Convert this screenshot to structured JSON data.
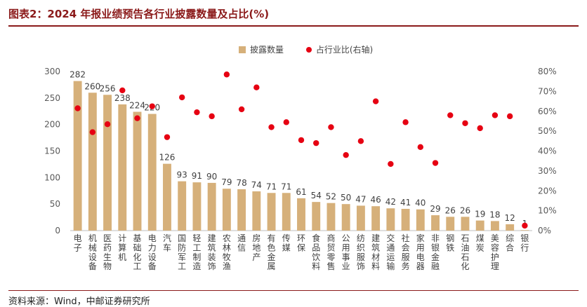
{
  "figure_title": "图表2：2024 年报业绩预告各行业披露数量及占比(%)",
  "source_note": "资料来源：Wind，中邮证券研究所",
  "chart_data": {
    "type": "bar",
    "categories": [
      "电子",
      "机械设备",
      "医药生物",
      "计算机",
      "基础化工",
      "电力设备",
      "汽车",
      "国防军工",
      "轻工制造",
      "建筑装饰",
      "农林牧渔",
      "通信",
      "房地产",
      "有色金属",
      "传媒",
      "环保",
      "食品饮料",
      "商贸零售",
      "公用事业",
      "纺织服饰",
      "建筑材料",
      "交通运输",
      "社会服务",
      "家用电器",
      "非银金融",
      "钢铁",
      "石油石化",
      "煤炭",
      "美容护理",
      "综合",
      "银行"
    ],
    "series": [
      {
        "name": "披露数量",
        "axis": "left",
        "kind": "bar",
        "values": [
          282,
          260,
          256,
          238,
          224,
          220,
          126,
          93,
          91,
          90,
          79,
          78,
          74,
          71,
          71,
          61,
          54,
          52,
          50,
          47,
          46,
          42,
          41,
          40,
          29,
          26,
          26,
          19,
          18,
          12,
          1
        ]
      },
      {
        "name": "占行业比(右轴)",
        "axis": "right",
        "kind": "scatter",
        "values": [
          61.5,
          49.5,
          53.5,
          70.5,
          56.5,
          62.5,
          47,
          67,
          59.5,
          57.5,
          78.5,
          61,
          72,
          52,
          54.5,
          45.5,
          44,
          52,
          38,
          45,
          65,
          33.5,
          54.5,
          42,
          34,
          58,
          54,
          51.5,
          58,
          57.5,
          2.5
        ]
      }
    ],
    "left_axis": {
      "min": 0,
      "max": 300,
      "ticks": [
        "0",
        "50",
        "100",
        "150",
        "200",
        "250",
        "300"
      ]
    },
    "right_axis": {
      "min": 0,
      "max": 80,
      "ticks": [
        "0%",
        "10%",
        "20%",
        "30%",
        "40%",
        "50%",
        "60%",
        "70%",
        "80%"
      ]
    },
    "legend": {
      "position": "top",
      "items": [
        "披露数量",
        "占行业比(右轴)"
      ]
    },
    "grid": false,
    "colors": {
      "bar": "#d6b07a",
      "dot": "#e60012",
      "axis": "#bfbfbf",
      "text": "#595959"
    }
  }
}
